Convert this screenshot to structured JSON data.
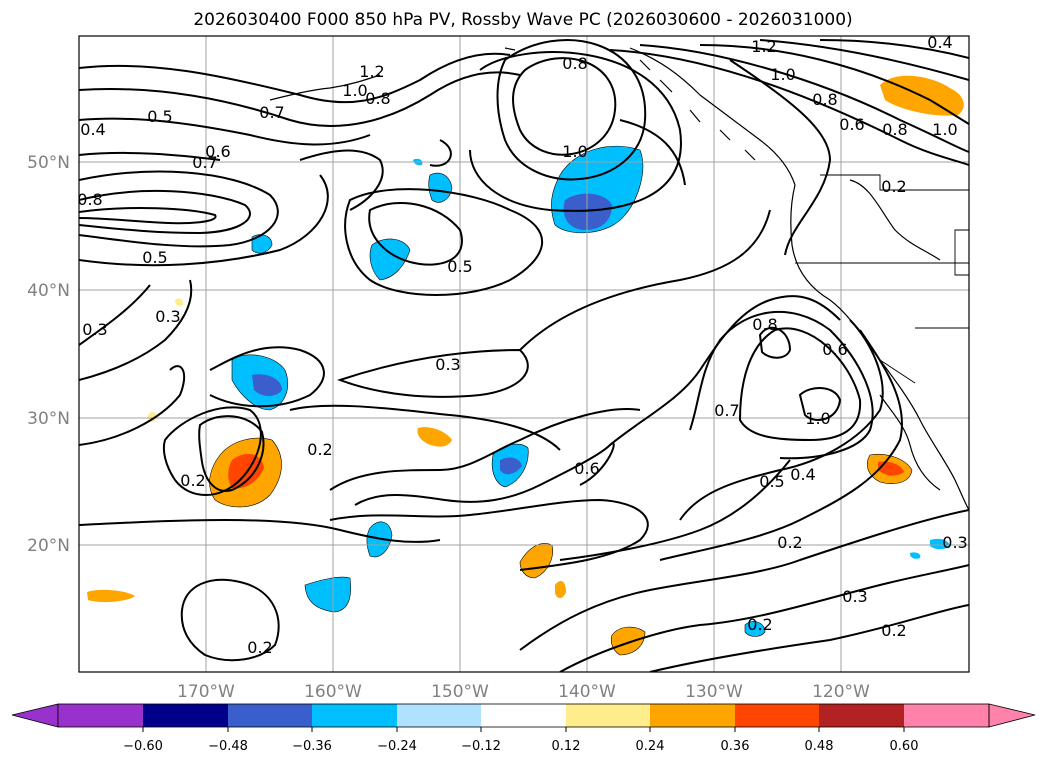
{
  "title": "2026030400 F000 850 hPa PV, Rossby Wave PC (2026030600 - 2026031000)",
  "lat_labels": [
    "50°N",
    "40°N",
    "30°N",
    "20°N"
  ],
  "lon_labels": [
    "170°W",
    "160°W",
    "150°W",
    "140°W",
    "130°W",
    "120°W"
  ],
  "colorbar": {
    "ticks": [
      "−0.60",
      "−0.48",
      "−0.36",
      "−0.24",
      "−0.12",
      "0.12",
      "0.24",
      "0.36",
      "0.48",
      "0.60"
    ],
    "colors": [
      "#9932cc",
      "#00008b",
      "#3a5fcd",
      "#00bfff",
      "#b0e2ff",
      "#ffffff",
      "#ffec8b",
      "#ffa500",
      "#ff4500",
      "#b22222",
      "#ff82ab"
    ]
  },
  "contour_labels": [
    "1.2",
    "0.4",
    "0.8",
    "1.0",
    "0.8",
    "0.6",
    "0.8",
    "1.0",
    "1.2",
    "0.8",
    "1.0",
    "0.7",
    "0.5",
    "0.4",
    "0.6",
    "0.7",
    "0.8",
    "1.0",
    "0.2",
    "0.5",
    "0.5",
    "0.3",
    "0.3",
    "0.3",
    "0.8",
    "0.6",
    "0.7",
    "1.0",
    "0.2",
    "0.2",
    "0.6",
    "0.5",
    "0.4",
    "0.2",
    "0.3",
    "0.2",
    "0.3",
    "0.2",
    "0.2"
  ]
}
